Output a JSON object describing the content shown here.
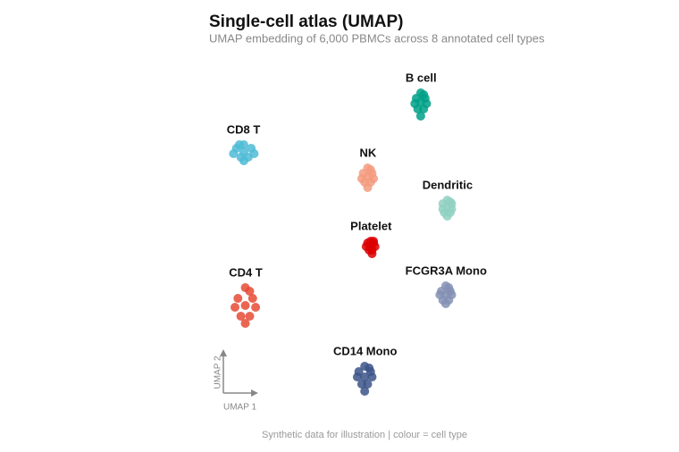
{
  "chart_data": {
    "type": "scatter",
    "title": "Single-cell atlas (UMAP)",
    "subtitle": "UMAP embedding of 6,000 PBMCs across 8 annotated cell types",
    "caption": "Synthetic data for illustration | colour = cell type",
    "x_label": "UMAP 1",
    "y_label": "UMAP 2",
    "xlim": [
      0,
      100
    ],
    "ylim": [
      0,
      100
    ],
    "series": [
      {
        "name": "B cell",
        "color": "#00a087",
        "x": [
          73,
          71.5,
          74.5,
          72,
          74,
          73,
          71,
          75,
          73,
          74
        ],
        "y": [
          89,
          90,
          90,
          87,
          87,
          91.5,
          88.5,
          88.5,
          85,
          91
        ]
      },
      {
        "name": "CD8 T",
        "color": "#4dbbd5",
        "x": [
          13,
          10.5,
          15.5,
          12,
          14.5,
          13,
          9.5,
          16.5,
          13,
          11.5
        ],
        "y": [
          75,
          76,
          76,
          73.5,
          73.5,
          77,
          74.5,
          74.5,
          72.5,
          77
        ]
      },
      {
        "name": "NK",
        "color": "#f39b7f",
        "x": [
          55,
          53.5,
          56.5,
          54,
          56,
          55,
          53,
          57,
          55,
          56
        ],
        "y": [
          68,
          69,
          69,
          66.5,
          66.5,
          70.5,
          67.5,
          67.5,
          65,
          70
        ]
      },
      {
        "name": "Dendritic",
        "color": "#91d1c2",
        "x": [
          82,
          80.5,
          83.5,
          81,
          83,
          82,
          80.5,
          83.5,
          82,
          83
        ],
        "y": [
          59.5,
          60.5,
          60.5,
          58,
          58,
          61.5,
          59,
          59,
          57,
          61
        ]
      },
      {
        "name": "Platelet",
        "color": "#dc0000",
        "x": [
          56,
          55,
          57,
          55.5,
          56.5,
          56,
          54.5,
          57.5,
          56.5,
          57
        ],
        "y": [
          48.5,
          49.5,
          49.5,
          47.5,
          47.5,
          50,
          48.5,
          48.5,
          46.5,
          50
        ]
      },
      {
        "name": "CD4 T",
        "color": "#e64b35",
        "x": [
          13.5,
          11,
          16,
          12,
          15,
          13.5,
          10,
          17,
          13.5,
          15
        ],
        "y": [
          32,
          34,
          34,
          29,
          29,
          37,
          31.5,
          31.5,
          27,
          36
        ]
      },
      {
        "name": "FCGR3A Mono",
        "color": "#8491b4",
        "x": [
          81.5,
          80,
          83,
          80.5,
          82.5,
          81.5,
          79.5,
          83.5,
          81.5,
          82.5
        ],
        "y": [
          35,
          36,
          36,
          33.5,
          33.5,
          37.5,
          35,
          35,
          32.5,
          37
        ]
      },
      {
        "name": "CD14 Mono",
        "color": "#3c5488",
        "x": [
          54,
          52,
          56,
          53,
          55,
          54,
          51.5,
          56.5,
          54,
          55.5
        ],
        "y": [
          12,
          13.5,
          13.5,
          10,
          10,
          15,
          12,
          12,
          8,
          14.5
        ]
      }
    ]
  }
}
